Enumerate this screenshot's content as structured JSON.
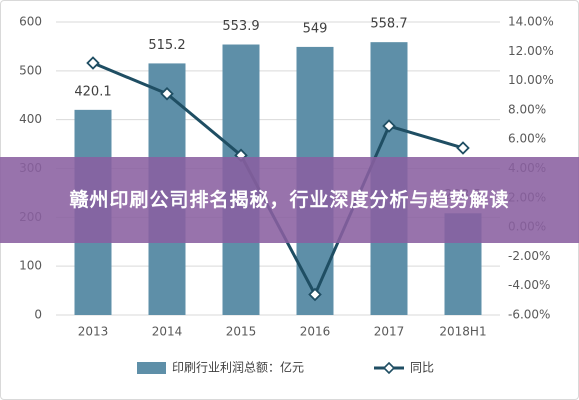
{
  "overlay": {
    "title": "赣州印刷公司排名揭秘，行业深度分析与趋势解读"
  },
  "colors": {
    "bar": "#5e8fa8",
    "line": "#1f4e63",
    "marker_fill": "#ffffff",
    "grid": "#d9d9d9",
    "axis_text": "#595959",
    "banner": "#8a60a0"
  },
  "chart_data": {
    "type": "bar",
    "categories": [
      "2013",
      "2014",
      "2015",
      "2016",
      "2017",
      "2018H1"
    ],
    "series": [
      {
        "name": "印刷行业利润总额：亿元",
        "type": "bar",
        "axis": "left",
        "values": [
          420.1,
          515.2,
          553.9,
          549,
          558.7,
          208.3
        ],
        "data_labels": [
          "420.1",
          "515.2",
          "553.9",
          "549",
          "558.7",
          "208.3"
        ]
      },
      {
        "name": "同比",
        "type": "line",
        "axis": "right",
        "marker": "diamond",
        "values": [
          11.2,
          9.1,
          4.9,
          -4.6,
          6.9,
          5.4
        ]
      }
    ],
    "y_left": {
      "min": 0,
      "max": 600,
      "ticks": [
        "0",
        "100",
        "200",
        "300",
        "400",
        "500",
        "600"
      ]
    },
    "y_right": {
      "min": -6,
      "max": 14,
      "ticks": [
        "-6.00%",
        "-4.00%",
        "-2.00%",
        "0.00%",
        "2.00%",
        "4.00%",
        "6.00%",
        "8.00%",
        "10.00%",
        "12.00%",
        "14.00%"
      ]
    },
    "grid": true,
    "legend_position": "bottom"
  }
}
